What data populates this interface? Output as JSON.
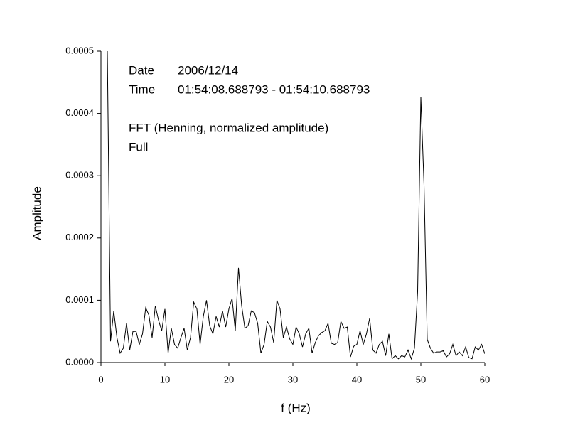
{
  "chart_data": {
    "type": "line",
    "xlabel": "f (Hz)",
    "ylabel": "Amplitude",
    "annotations": {
      "date_label": "Date",
      "date": "2006/12/14",
      "time_label": "Time",
      "time": "01:54:08.688793 - 01:54:10.688793",
      "method": "FFT (Henning, normalized amplitude)",
      "range": "Full"
    },
    "x": [
      1,
      1.5,
      2,
      2.5,
      3,
      3.5,
      4,
      4.5,
      5,
      5.5,
      6,
      6.5,
      7,
      7.5,
      8,
      8.5,
      9,
      9.5,
      10,
      10.5,
      11,
      11.5,
      12,
      12.5,
      13,
      13.5,
      14,
      14.5,
      15,
      15.5,
      16,
      16.5,
      17,
      17.5,
      18,
      18.5,
      19,
      19.5,
      20,
      20.5,
      21,
      21.5,
      22,
      22.5,
      23,
      23.5,
      24,
      24.5,
      25,
      25.5,
      26,
      26.5,
      27,
      27.5,
      28,
      28.5,
      29,
      29.5,
      30,
      30.5,
      31,
      31.5,
      32,
      32.5,
      33,
      33.5,
      34,
      34.5,
      35,
      35.5,
      36,
      36.5,
      37,
      37.5,
      38,
      38.5,
      39,
      39.5,
      40,
      40.5,
      41,
      41.5,
      42,
      42.5,
      43,
      43.5,
      44,
      44.5,
      45,
      45.5,
      46,
      46.5,
      47,
      47.5,
      48,
      48.5,
      49,
      49.5,
      50,
      50.5,
      51,
      51.5,
      52,
      52.5,
      53,
      53.5,
      54,
      54.5,
      55,
      55.5,
      56,
      56.5,
      57,
      57.5,
      58,
      58.5,
      59,
      59.5,
      60
    ],
    "series": [
      {
        "color": "#000000",
        "values": [
          0.0005,
          3.4e-05,
          8.3e-05,
          4e-05,
          1.5e-05,
          2.3e-05,
          6.3e-05,
          2e-05,
          5e-05,
          5e-05,
          2.9e-05,
          4.6e-05,
          8.8e-05,
          7.6e-05,
          4e-05,
          9.1e-05,
          6.8e-05,
          5.1e-05,
          8.6e-05,
          1.5e-05,
          5.5e-05,
          2.9e-05,
          2.3e-05,
          4e-05,
          5.5e-05,
          2e-05,
          4e-05,
          9.7e-05,
          8.6e-05,
          2.9e-05,
          7.4e-05,
          0.0001,
          5.9e-05,
          4.6e-05,
          7.4e-05,
          5.7e-05,
          8.3e-05,
          5.7e-05,
          8.6e-05,
          0.000103,
          5.1e-05,
          0.000152,
          9.1e-05,
          5.5e-05,
          5.9e-05,
          8.3e-05,
          8e-05,
          6.3e-05,
          1.5e-05,
          2.9e-05,
          6.6e-05,
          5.7e-05,
          3.2e-05,
          0.0001,
          8.6e-05,
          4e-05,
          5.7e-05,
          3.8e-05,
          2.9e-05,
          5.7e-05,
          4.6e-05,
          2.5e-05,
          4.6e-05,
          5.5e-05,
          1.5e-05,
          3.2e-05,
          4.3e-05,
          4.8e-05,
          5.1e-05,
          6.3e-05,
          3.1e-05,
          2.9e-05,
          3.2e-05,
          6.6e-05,
          5.5e-05,
          5.7e-05,
          9e-06,
          2.6e-05,
          2.9e-05,
          5.1e-05,
          2.9e-05,
          4.6e-05,
          7.1e-05,
          2e-05,
          1.5e-05,
          2.9e-05,
          3.4e-05,
          1.1e-05,
          4.6e-05,
          6e-06,
          1.1e-05,
          6e-06,
          1.1e-05,
          9e-06,
          2e-05,
          6e-06,
          2.3e-05,
          0.000114,
          0.000426,
          0.000285,
          3.7e-05,
          2.3e-05,
          1.5e-05,
          1.7e-05,
          1.7e-05,
          1.9e-05,
          9e-06,
          1.4e-05,
          2.9e-05,
          1.1e-05,
          1.7e-05,
          1.1e-05,
          2.5e-05,
          8e-06,
          6e-06,
          2.5e-05,
          2e-05,
          2.9e-05,
          1.4e-05
        ]
      }
    ],
    "xlim": [
      0,
      60
    ],
    "xticks": [
      0,
      10,
      20,
      30,
      40,
      50,
      60
    ],
    "ylim": [
      0,
      0.0005
    ],
    "yticks": [
      {
        "value": 0,
        "label": "0.0000"
      },
      0.0001,
      0.0002,
      0.0003,
      0.0004,
      0.0005
    ],
    "grid": false
  }
}
